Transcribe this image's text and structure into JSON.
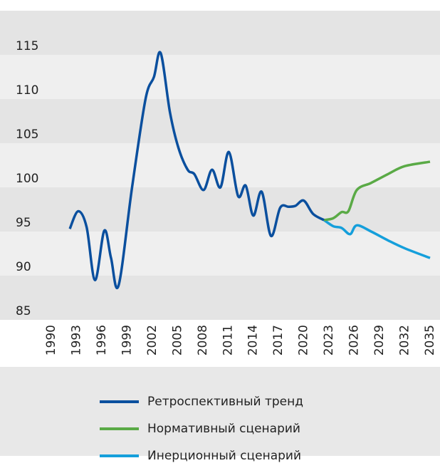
{
  "chart_data": {
    "type": "line",
    "xlim": [
      1990,
      2035
    ],
    "xticks": [
      1990,
      1993,
      1996,
      1999,
      2002,
      2005,
      2008,
      2011,
      2014,
      2017,
      2020,
      2023,
      2026,
      2029,
      2032,
      2035
    ],
    "ylim": [
      85,
      120
    ],
    "yticks": [
      85,
      90,
      95,
      100,
      105,
      110,
      115
    ],
    "grid": "bands",
    "series": [
      {
        "name": "Ретроспективный тренд",
        "color": "#0a4f9e",
        "x": [
          1992.2,
          1993.2,
          1994.2,
          1995.2,
          1996.3,
          1997.1,
          1998,
          1999.6,
          2001.2,
          2002.2,
          2003,
          2004.1,
          2005.1,
          2006.2,
          2007,
          2008.1,
          2009.1,
          2010.1,
          2011.1,
          2012.2,
          2013.1,
          2014,
          2015,
          2016.1,
          2017.2,
          2018.2,
          2019,
          2020,
          2021.1,
          2022.4
        ],
        "values": [
          95.3,
          97.3,
          95.5,
          89.5,
          95.1,
          92,
          88.9,
          100,
          110,
          112.5,
          115.2,
          108.5,
          104.5,
          102,
          101.5,
          99.7,
          102,
          100,
          104,
          99,
          100.2,
          96.8,
          99.5,
          94.5,
          97.7,
          97.8,
          97.9,
          98.5,
          97,
          96.3
        ]
      },
      {
        "name": "Нормативный сценарий",
        "color": "#5aaa46",
        "x": [
          2022.4,
          2023.5,
          2024.5,
          2025.3,
          2026.3,
          2028,
          2030,
          2032,
          2035
        ],
        "values": [
          96.3,
          96.5,
          97.2,
          97.3,
          99.7,
          100.5,
          101.5,
          102.4,
          102.9
        ]
      },
      {
        "name": "Инерционный сценарий",
        "color": "#159fdb",
        "x": [
          2022.4,
          2023.5,
          2024.5,
          2025.5,
          2026.3,
          2028,
          2030,
          2032,
          2035
        ],
        "values": [
          96.3,
          95.6,
          95.4,
          94.7,
          95.7,
          95.0,
          94.0,
          93.1,
          92.0
        ]
      }
    ]
  }
}
